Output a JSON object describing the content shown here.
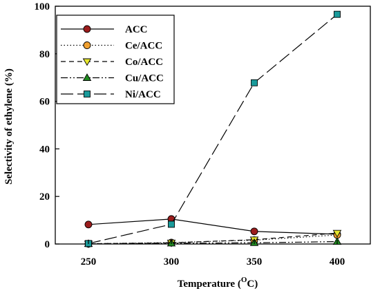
{
  "chart_data": {
    "type": "line",
    "xlabel": "Temperature (",
    "xlabel_sup": "O",
    "xlabel_tail": "C)",
    "ylabel": "Selectivity of ethylene (%)",
    "x": [
      250,
      300,
      350,
      400
    ],
    "xticks": [
      "250",
      "300",
      "350",
      "400"
    ],
    "xlim": [
      230,
      420
    ],
    "ylim": [
      0,
      100
    ],
    "yticks": [
      "0",
      "20",
      "40",
      "60",
      "80",
      "100"
    ],
    "grid": false,
    "legend_position": "top-left",
    "series": [
      {
        "name": "ACC",
        "values": [
          8.2,
          10.5,
          5.3,
          4.1
        ],
        "color": "#9b1c1c",
        "marker": "circle",
        "dash": "solid"
      },
      {
        "name": "Ce/ACC",
        "values": [
          0.1,
          0.6,
          1.6,
          3.8
        ],
        "color": "#f0a030",
        "marker": "circle",
        "dash": "dotted"
      },
      {
        "name": "Co/ACC",
        "values": [
          0.1,
          0.5,
          1.8,
          4.6
        ],
        "color": "#e6e62e",
        "marker": "triangle-down",
        "dash": "dashed"
      },
      {
        "name": "Cu/ACC",
        "values": [
          0.1,
          0.3,
          0.5,
          1.0
        ],
        "color": "#1f8a1f",
        "marker": "triangle-up",
        "dash": "dashdotdot"
      },
      {
        "name": "Ni/ACC",
        "values": [
          0.2,
          8.3,
          67.8,
          96.6
        ],
        "color": "#1a9a9a",
        "marker": "square",
        "dash": "longdash"
      }
    ]
  }
}
